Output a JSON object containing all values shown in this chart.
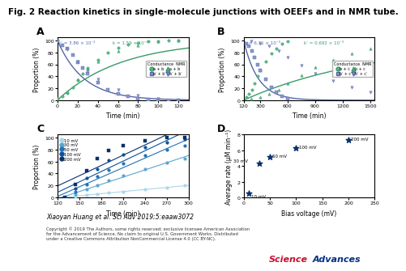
{
  "title": "Fig. 2 Reaction kinetics in single-molecule junctions with OEEFs and in NMR tube.",
  "title_fontsize": 7.5,
  "panel_A": {
    "label": "A",
    "xlabel": "Time (min)",
    "ylabel": "Proportion (%)",
    "xlim": [
      0,
      130
    ],
    "ylim": [
      0,
      105
    ],
    "xticks": [
      0,
      20,
      40,
      60,
      80,
      100,
      120
    ],
    "yticks": [
      0,
      20,
      40,
      60,
      80,
      100
    ],
    "ann1": "k’ = 3.86 × 10⁻²",
    "ann2": "k = 1.59 × 10⁻²",
    "k_blue": 0.0386,
    "k_green": 0.0159,
    "cond_green_x": [
      0,
      5,
      10,
      15,
      20,
      25,
      30,
      40,
      50,
      60,
      70,
      80,
      90,
      100,
      110,
      120
    ],
    "cond_green_y": [
      2,
      6,
      12,
      22,
      34,
      44,
      54,
      68,
      80,
      88,
      93,
      96,
      98,
      99,
      100,
      100
    ],
    "cond_blue_x": [
      0,
      5,
      10,
      15,
      20,
      25,
      30,
      40,
      50,
      60,
      70,
      80,
      90,
      100,
      110,
      120
    ],
    "cond_blue_y": [
      98,
      92,
      86,
      76,
      64,
      54,
      44,
      30,
      18,
      10,
      6,
      3,
      1,
      0,
      0,
      0
    ],
    "nmr_green_x": [
      0,
      10,
      20,
      30,
      40,
      60,
      80,
      100,
      120
    ],
    "nmr_green_y": [
      2,
      15,
      35,
      52,
      65,
      82,
      92,
      98,
      100
    ],
    "nmr_blue_x": [
      0,
      10,
      20,
      30,
      40,
      60,
      80,
      100,
      120
    ],
    "nmr_blue_y": [
      98,
      85,
      65,
      48,
      35,
      18,
      8,
      2,
      0
    ],
    "green_color": "#5ab88a",
    "blue_color": "#8899cc",
    "green_dark": "#3a9a68",
    "blue_dark": "#5566aa"
  },
  "panel_B": {
    "label": "B",
    "xlabel": "Time (min)",
    "ylabel": "Proportion (%)",
    "xlim": [
      120,
      1550
    ],
    "ylim": [
      0,
      105
    ],
    "xticks": [
      120,
      300,
      600,
      900,
      1200,
      1500
    ],
    "yticks": [
      0,
      20,
      40,
      60,
      80,
      100
    ],
    "ann1": "k = 6.31 × 10⁻³",
    "ann2": "k’ = 0.692 × 10⁻³",
    "k_blue": 0.00631,
    "k_green": 0.000692,
    "cond_blue_x": [
      150,
      180,
      210,
      240,
      270,
      300,
      360,
      420,
      480,
      540,
      600
    ],
    "cond_blue_y": [
      95,
      90,
      82,
      72,
      60,
      50,
      35,
      22,
      13,
      6,
      2
    ],
    "cond_green_x": [
      150,
      180,
      210,
      240,
      270,
      300,
      360,
      420,
      480,
      540,
      600
    ],
    "cond_green_y": [
      5,
      10,
      18,
      28,
      40,
      50,
      65,
      78,
      87,
      94,
      98
    ],
    "nmr_green_x": [
      200,
      300,
      400,
      500,
      600,
      750,
      900,
      1100,
      1300,
      1500
    ],
    "nmr_green_y": [
      2,
      5,
      10,
      18,
      28,
      42,
      55,
      68,
      78,
      87
    ],
    "nmr_blue_x": [
      200,
      300,
      400,
      500,
      600,
      750,
      900,
      1100,
      1300,
      1500
    ],
    "nmr_blue_y": [
      98,
      95,
      90,
      82,
      72,
      58,
      45,
      32,
      22,
      13
    ],
    "green_color": "#5ab88a",
    "blue_color": "#8899cc",
    "green_dark": "#3a9a68",
    "blue_dark": "#5566aa"
  },
  "panel_C": {
    "label": "C",
    "xlabel": "Time (min)",
    "ylabel": "Proportion (%)",
    "xlim": [
      120,
      300
    ],
    "ylim": [
      0,
      105
    ],
    "xticks": [
      120,
      150,
      180,
      210,
      240,
      270,
      300
    ],
    "yticks": [
      0,
      20,
      40,
      60,
      80,
      100
    ],
    "voltages": [
      "10 mV",
      "30 mV",
      "50 mV",
      "100 mV",
      "200 mV"
    ],
    "colors": [
      "#a8d8ea",
      "#5ba4cf",
      "#2171b5",
      "#08519c",
      "#08306b"
    ],
    "scatter_x": [
      130,
      145,
      160,
      175,
      190,
      210,
      240,
      270,
      295
    ],
    "scatter_y_10": [
      0,
      2,
      4,
      6,
      8,
      10,
      13,
      16,
      20
    ],
    "scatter_y_30": [
      0,
      6,
      13,
      21,
      28,
      36,
      48,
      58,
      65
    ],
    "scatter_y_50": [
      0,
      10,
      22,
      35,
      46,
      57,
      70,
      80,
      87
    ],
    "scatter_y_100": [
      0,
      15,
      32,
      48,
      62,
      72,
      84,
      92,
      97
    ],
    "scatter_y_200": [
      0,
      22,
      45,
      65,
      78,
      87,
      95,
      100,
      100
    ]
  },
  "panel_D": {
    "label": "D",
    "xlabel": "Bias voltage (mV)",
    "ylabel": "Average rate (μM min⁻¹)",
    "xlim": [
      0,
      250
    ],
    "ylim": [
      0,
      8
    ],
    "xticks": [
      0,
      50,
      100,
      150,
      200,
      250
    ],
    "yticks": [
      0,
      2,
      4,
      6,
      8
    ],
    "x": [
      10,
      30,
      50,
      100,
      200
    ],
    "y": [
      0.5,
      4.3,
      5.2,
      6.3,
      7.3
    ],
    "labels": [
      "10 mV",
      "30 mV",
      "50 mV",
      "100 mV",
      "200 mV"
    ],
    "color": "#08306b"
  },
  "citation": "Xiaoyan Huang et al. Sci Adv 2019;5:eaaw3072",
  "copyright_line1": "Copyright © 2019 The Authors, some rights reserved; exclusive licensee American Association",
  "copyright_line2": "for the Advancement of Science. No claim to original U.S. Government Works. Distributed",
  "copyright_line3": "under a Creative Commons Attribution NonCommercial License 4.0 (CC BY-NC).",
  "sa_science_color": "#c8102e",
  "sa_advances_color": "#003087"
}
